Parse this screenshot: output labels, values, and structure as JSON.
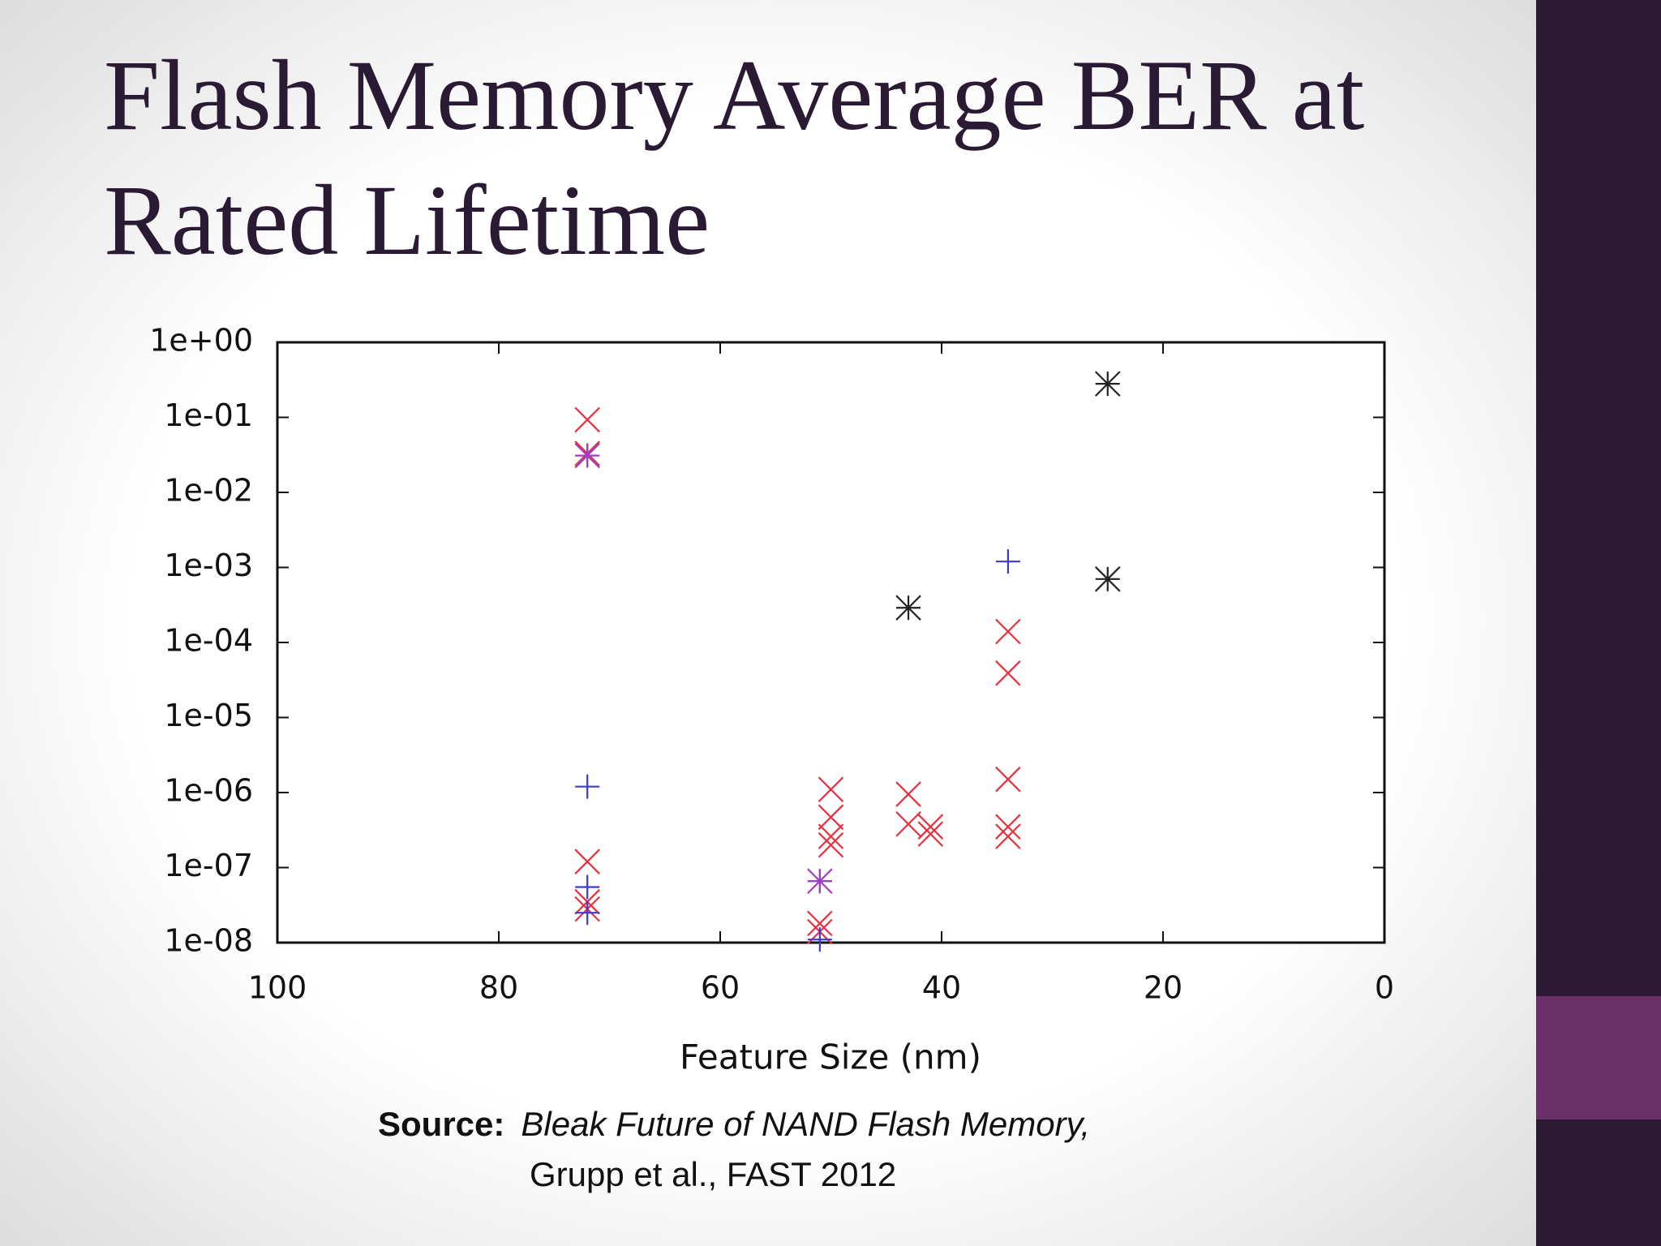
{
  "chart_data": {
    "type": "scatter",
    "title": [
      "Flash Memory Average BER at",
      "Rated Lifetime"
    ],
    "x_label": "Feature Size (nm)",
    "xlim": [
      100,
      0
    ],
    "xticks": [
      100,
      80,
      60,
      40,
      20,
      0
    ],
    "ylim": [
      1e-08,
      1
    ],
    "y_scale": "log",
    "yticks": [
      {
        "value": 1,
        "label": "1e+00"
      },
      {
        "value": 0.1,
        "label": "1e-01"
      },
      {
        "value": 0.01,
        "label": "1e-02"
      },
      {
        "value": 0.001,
        "label": "1e-03"
      },
      {
        "value": 0.0001,
        "label": "1e-04"
      },
      {
        "value": 1e-05,
        "label": "1e-05"
      },
      {
        "value": 1e-06,
        "label": "1e-06"
      },
      {
        "value": 1e-07,
        "label": "1e-07"
      },
      {
        "value": 1e-08,
        "label": "1e-08"
      }
    ],
    "series": [
      {
        "color": "#e8303c",
        "marker": "x",
        "x": [
          72,
          72,
          72,
          72,
          72,
          50,
          50,
          50,
          50,
          51,
          51,
          43,
          43,
          41,
          41,
          34,
          34,
          34,
          34,
          34
        ],
        "values": [
          0.093,
          0.033,
          1.2e-07,
          3.5e-08,
          2.8e-08,
          1.1e-06,
          4.7e-07,
          2.6e-07,
          2e-07,
          1.8e-08,
          1.4e-08,
          9.5e-07,
          3.8e-07,
          3.5e-07,
          2.8e-07,
          0.00014,
          3.9e-05,
          1.5e-06,
          3.5e-07,
          2.6e-07
        ]
      },
      {
        "color": "#3a3ad8",
        "marker": "+",
        "x": [
          72,
          72,
          72,
          72,
          51,
          51,
          34
        ],
        "values": [
          0.031,
          1.2e-06,
          5.5e-08,
          2.5e-08,
          6.6e-08,
          1.1e-08,
          0.0012
        ]
      },
      {
        "color": "#222222",
        "marker": "*",
        "x": [
          25,
          25,
          43
        ],
        "values": [
          0.28,
          0.0007,
          0.00029
        ]
      },
      {
        "color": "#a040c0",
        "marker": "*",
        "x": [
          72,
          51
        ],
        "values": [
          0.031,
          6.6e-08
        ]
      }
    ],
    "source_label": "Source:",
    "source_title": "Bleak Future of NAND Flash Memory,",
    "source_detail": "Grupp et al.,  FAST 2012"
  }
}
